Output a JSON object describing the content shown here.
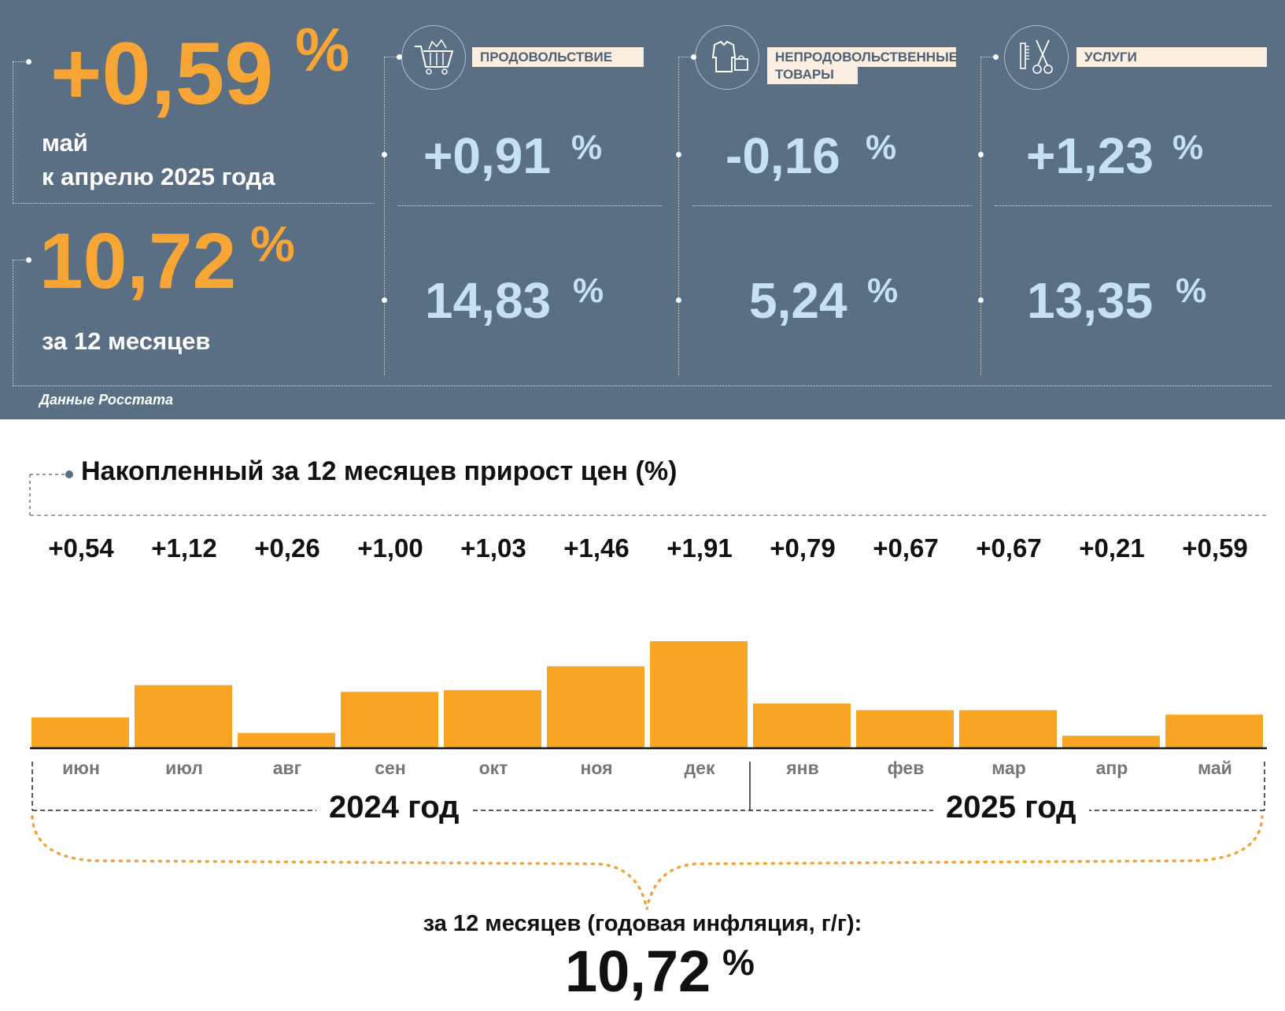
{
  "header": {
    "monthly_value": "+0,59",
    "monthly_unit": "%",
    "monthly_caption_line1": "май",
    "monthly_caption_line2": "к апрелю 2025 года",
    "annual_value": "10,72",
    "annual_unit": "%",
    "annual_caption": "за 12 месяцев",
    "source": "Данные Росстата"
  },
  "categories": [
    {
      "label": "ПРОДОВОЛЬСТВИЕ",
      "icon": "shopping-cart-icon",
      "monthly": "+0,91",
      "annual": "14,83",
      "unit": "%"
    },
    {
      "label": "НЕПРОДОВОЛЬСТВЕННЫЕ ТОВАРЫ",
      "label_line1": "НЕПРОДОВОЛЬСТВЕННЫЕ",
      "label_line2": "ТОВАРЫ",
      "icon": "clothing-bag-icon",
      "monthly": "-0,16",
      "annual": "5,24",
      "unit": "%"
    },
    {
      "label": "УСЛУГИ",
      "icon": "comb-scissors-icon",
      "monthly": "+1,23",
      "annual": "13,35",
      "unit": "%"
    }
  ],
  "colors": {
    "panel": "#5a6e84",
    "accent": "#f7a535",
    "value_blue": "#c6e2f2",
    "label_bg": "#fbeee0"
  },
  "chart_data": {
    "type": "bar",
    "title": "Накопленный за 12 месяцев прирост цен (%)",
    "categories": [
      "июн",
      "июл",
      "авг",
      "сен",
      "окт",
      "ноя",
      "дек",
      "янв",
      "фев",
      "мар",
      "апр",
      "май"
    ],
    "values": [
      0.54,
      1.12,
      0.26,
      1.0,
      1.03,
      1.46,
      1.91,
      0.79,
      0.67,
      0.67,
      0.21,
      0.59
    ],
    "value_labels": [
      "+0,54",
      "+1,12",
      "+0,26",
      "+1,00",
      "+1,03",
      "+1,46",
      "+1,91",
      "+0,79",
      "+0,67",
      "+0,67",
      "+0,21",
      "+0,59"
    ],
    "year_groups": [
      {
        "label": "2024 год",
        "months": [
          "июн",
          "июл",
          "авг",
          "сен",
          "окт",
          "ноя",
          "дек"
        ]
      },
      {
        "label": "2025 год",
        "months": [
          "янв",
          "фев",
          "мар",
          "апр",
          "май"
        ]
      }
    ],
    "summary_caption": "за 12 месяцев (годовая инфляция, г/г):",
    "summary_value": "10,72",
    "summary_unit": "%",
    "bar_color": "#f9a422",
    "ylim": [
      0,
      1.91
    ]
  }
}
